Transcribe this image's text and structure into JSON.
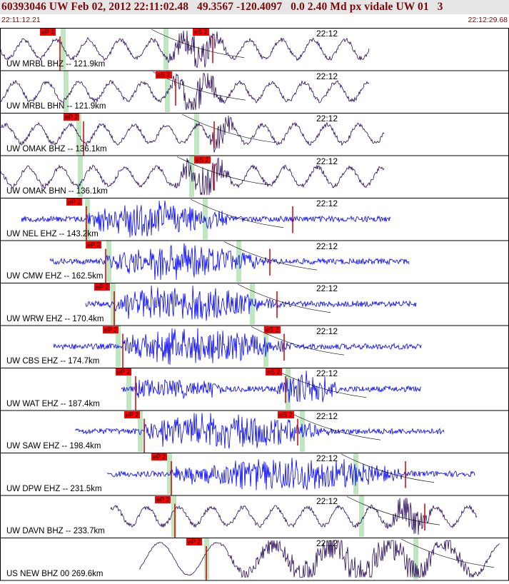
{
  "header": {
    "title": "60393046 UW Feb 02, 2012 22:11:02.48   49.3567 -120.4097   0.0 2.40 Md px vidale UW 01   3",
    "time_start": "22:11:12.21",
    "time_end": "22:12:29.68"
  },
  "colors": {
    "header_text": "#7a0a0a",
    "trace_dark": "#2a0a5e",
    "trace_blue": "#0000ff",
    "pick_line": "#cc0000",
    "pick_tag": "#ff0000",
    "green_window": "#bfe6bf"
  },
  "minute_label": "22:12",
  "panels": [
    {
      "label": "UW MRBL BHZ -- 121.9km",
      "trace_color": "dark",
      "picks": [
        "eP 2",
        "eS 2"
      ]
    },
    {
      "label": "UW MRBL BHN -- 121.9km",
      "trace_color": "dark",
      "picks": [
        "eS 2"
      ]
    },
    {
      "label": "UW OMAK BHZ -- 136.1km",
      "trace_color": "dark",
      "picks": [
        "eP 2"
      ]
    },
    {
      "label": "UW OMAK BHN -- 136.1km",
      "trace_color": "dark",
      "picks": [
        "eS 2"
      ]
    },
    {
      "label": "UW NEL EHZ -- 143.2km",
      "trace_color": "blue",
      "picks": [
        "eP 2"
      ]
    },
    {
      "label": "UW CMW EHZ -- 162.5km",
      "trace_color": "blue",
      "picks": [
        "eP 2"
      ]
    },
    {
      "label": "UW WRW EHZ -- 170.4km",
      "trace_color": "blue",
      "picks": [
        "eP 2"
      ]
    },
    {
      "label": "UW CBS EHZ -- 174.7km",
      "trace_color": "blue",
      "picks": [
        "eP 2",
        "eS 2"
      ]
    },
    {
      "label": "UW WAT EHZ -- 187.4km",
      "trace_color": "blue",
      "picks": [
        "eP 2",
        "eS 2"
      ]
    },
    {
      "label": "UW SAW EHZ -- 198.4km",
      "trace_color": "blue",
      "picks": [
        "eP 2",
        "eS 2"
      ]
    },
    {
      "label": "UW DPW EHZ -- 231.5km",
      "trace_color": "blue",
      "picks": [
        "eP 2"
      ]
    },
    {
      "label": "UW DAVN BHZ -- 233.7km",
      "trace_color": "dark",
      "picks": [
        "eP 2"
      ]
    },
    {
      "label": "US NEW BHZ 00 269.6km",
      "trace_color": "dark",
      "picks": [
        "eP 2"
      ]
    }
  ]
}
